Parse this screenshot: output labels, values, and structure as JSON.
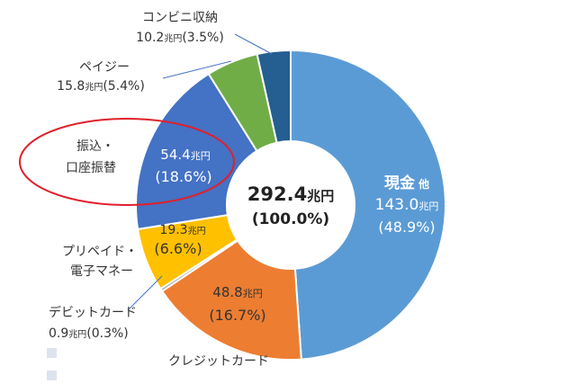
{
  "chart_data": {
    "type": "pie",
    "variant": "donut",
    "total": {
      "value": "292.4",
      "unit": "兆円",
      "percent": "(100.0%)"
    },
    "segments": [
      {
        "key": "cash",
        "name": "現金",
        "name_suffix": "他",
        "value": 143.0,
        "value_text": "143.0",
        "unit": "兆円",
        "percent_text": "(48.9%)",
        "color": "#5b9bd5",
        "label_color": "#ffffff"
      },
      {
        "key": "credit",
        "name": "クレジットカード",
        "value": 48.8,
        "value_text": "48.8",
        "unit": "兆円",
        "percent_text": "(16.7%)",
        "color": "#ed7d31",
        "label_color": "#333333"
      },
      {
        "key": "debit",
        "name": "デビットカード",
        "value": 0.9,
        "value_text": "0.9",
        "unit": "兆円",
        "percent_text": "(0.3%)",
        "color": "#a5a5a5",
        "label_color": "#333333"
      },
      {
        "key": "prepaid",
        "name": "プリペイド・",
        "name2": "電子マネー",
        "value": 19.3,
        "value_text": "19.3",
        "unit": "兆円",
        "percent_text": "(6.6%)",
        "color": "#ffc000",
        "label_color": "#333333"
      },
      {
        "key": "transfer",
        "name": "振込・",
        "name2": "口座振替",
        "value": 54.4,
        "value_text": "54.4",
        "unit": "兆円",
        "percent_text": "(18.6%)",
        "color": "#4472c4",
        "label_color": "#ffffff"
      },
      {
        "key": "payeasy",
        "name": "ペイジー",
        "value": 15.8,
        "value_text": "15.8",
        "unit": "兆円",
        "percent_text": "(5.4%)",
        "color": "#70ad47",
        "label_color": "#333333"
      },
      {
        "key": "konbini",
        "name": "コンビニ収納",
        "value": 10.2,
        "value_text": "10.2",
        "unit": "兆円",
        "percent_text": "(3.5%)",
        "color": "#255e91",
        "label_color": "#333333"
      }
    ],
    "highlight": {
      "segment": "transfer",
      "color": "#e0202a"
    }
  }
}
